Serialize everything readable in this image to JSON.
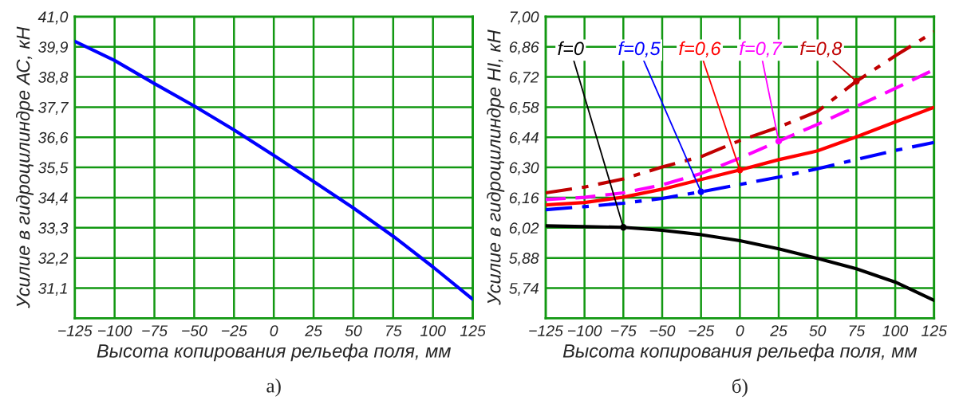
{
  "chart_data": [
    {
      "type": "line",
      "xlabel": "Высота копирования рельефа поля, мм",
      "ylabel": "Усилие в гидроцилиндре АС, кН",
      "annotations": [
        "а)"
      ],
      "x": [
        -125,
        -100,
        -75,
        -50,
        -25,
        0,
        25,
        50,
        75,
        100,
        125
      ],
      "series": [
        {
          "color": "#0000ff",
          "values": [
            40.1,
            39.4,
            38.56,
            37.74,
            36.87,
            35.94,
            34.99,
            34.02,
            32.99,
            31.87,
            30.69
          ]
        }
      ],
      "xlim": [
        -125,
        125
      ],
      "xticks": [
        {
          "value": -125,
          "label": "−125"
        },
        {
          "value": -100,
          "label": "−100"
        },
        {
          "value": -75,
          "label": "−75"
        },
        {
          "value": -50,
          "label": "−50"
        },
        {
          "value": -25,
          "label": "−25"
        },
        0,
        25,
        50,
        75,
        100,
        125
      ],
      "ylim": [
        30.0,
        41.0
      ],
      "yticks": [
        {
          "value": 30.0,
          "label": null
        },
        {
          "value": 31.1,
          "label": "31,1"
        },
        {
          "value": 32.2,
          "label": "32,2"
        },
        {
          "value": 33.3,
          "label": "33,3"
        },
        {
          "value": 34.4,
          "label": "34,4"
        },
        {
          "value": 35.5,
          "label": "35,5"
        },
        {
          "value": 36.6,
          "label": "36,6"
        },
        {
          "value": 37.7,
          "label": "37,7"
        },
        {
          "value": 38.8,
          "label": "38,8"
        },
        {
          "value": 39.9,
          "label": "39,9"
        },
        {
          "value": 41.0,
          "label": "41,0"
        }
      ],
      "grid": true,
      "marker": "none",
      "line_style": "solid"
    },
    {
      "type": "line",
      "xlabel": "Высота копирования рельефа поля, мм",
      "ylabel": "Усилие в гидроцилиндре HI, кН",
      "annotations": [
        "б)"
      ],
      "x": [
        -125,
        -100,
        -75,
        -50,
        -25,
        0,
        25,
        50,
        75,
        100,
        125
      ],
      "series": [
        {
          "name": "f=0",
          "color": "#000000",
          "line_style": "solid",
          "values": [
            6.029,
            6.025,
            6.022,
            6.008,
            5.988,
            5.96,
            5.922,
            5.878,
            5.83,
            5.768,
            5.683
          ]
        },
        {
          "name": "f=0,5",
          "color": "#0000ff",
          "line_style": "dashdot",
          "values": [
            6.104,
            6.118,
            6.134,
            6.156,
            6.187,
            6.221,
            6.255,
            6.294,
            6.337,
            6.379,
            6.416
          ]
        },
        {
          "name": "f=0,6",
          "color": "#ff0000",
          "line_style": "solid",
          "values": [
            6.126,
            6.137,
            6.162,
            6.199,
            6.244,
            6.288,
            6.336,
            6.377,
            6.442,
            6.511,
            6.579
          ]
        },
        {
          "name": "f=0,7",
          "color": "#ff00ff",
          "line_style": "dashed",
          "values": [
            6.151,
            6.161,
            6.182,
            6.219,
            6.272,
            6.343,
            6.422,
            6.5,
            6.583,
            6.667,
            6.754
          ]
        },
        {
          "name": "f=0,8",
          "color": "#c00000",
          "line_style": "dashdot",
          "values": [
            6.182,
            6.209,
            6.247,
            6.302,
            6.35,
            6.425,
            6.487,
            6.56,
            6.7,
            6.818,
            6.93
          ]
        }
      ],
      "xlim": [
        -125,
        125
      ],
      "xticks": [
        {
          "value": -125,
          "label": "−125"
        },
        {
          "value": -100,
          "label": "−100"
        },
        {
          "value": -75,
          "label": "−75"
        },
        {
          "value": -50,
          "label": "−50"
        },
        {
          "value": -25,
          "label": "−25"
        },
        0,
        25,
        50,
        75,
        100,
        125
      ],
      "ylim": [
        5.6,
        7.0
      ],
      "yticks": [
        {
          "value": 5.6,
          "label": null
        },
        {
          "value": 5.74,
          "label": "5,74"
        },
        {
          "value": 5.88,
          "label": "5,88"
        },
        {
          "value": 6.02,
          "label": "6,02"
        },
        {
          "value": 6.16,
          "label": "6,16"
        },
        {
          "value": 6.3,
          "label": "6,30"
        },
        {
          "value": 6.44,
          "label": "6,44"
        },
        {
          "value": 6.58,
          "label": "6,58"
        },
        {
          "value": 6.72,
          "label": "6,72"
        },
        {
          "value": 6.86,
          "label": "6,86"
        },
        {
          "value": 7.0,
          "label": "7,00"
        }
      ],
      "grid": true,
      "marker": "none"
    }
  ]
}
